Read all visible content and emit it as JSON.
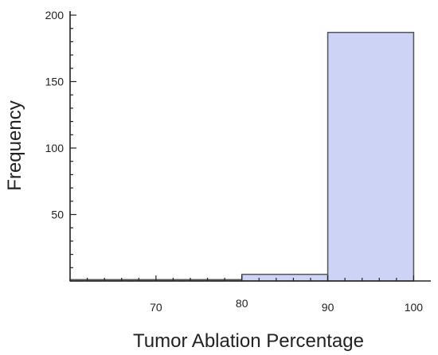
{
  "chart_data": {
    "type": "bar",
    "title": "",
    "xlabel": "Tumor Ablation Percentage",
    "ylabel": "Frequency",
    "bins": [
      {
        "x0": 60,
        "x1": 80,
        "value": 1
      },
      {
        "x0": 80,
        "x1": 90,
        "value": 5
      },
      {
        "x0": 90,
        "x1": 100,
        "value": 187
      }
    ],
    "xlim": [
      60,
      102
    ],
    "ylim": [
      0,
      203
    ],
    "x_ticks": [
      "70",
      "80",
      "90",
      "100"
    ],
    "y_ticks": [
      "50",
      "100",
      "150",
      "200"
    ],
    "grid": false,
    "legend": "none",
    "bar_color": "#ccd3f5",
    "edge_color": "#555555"
  }
}
